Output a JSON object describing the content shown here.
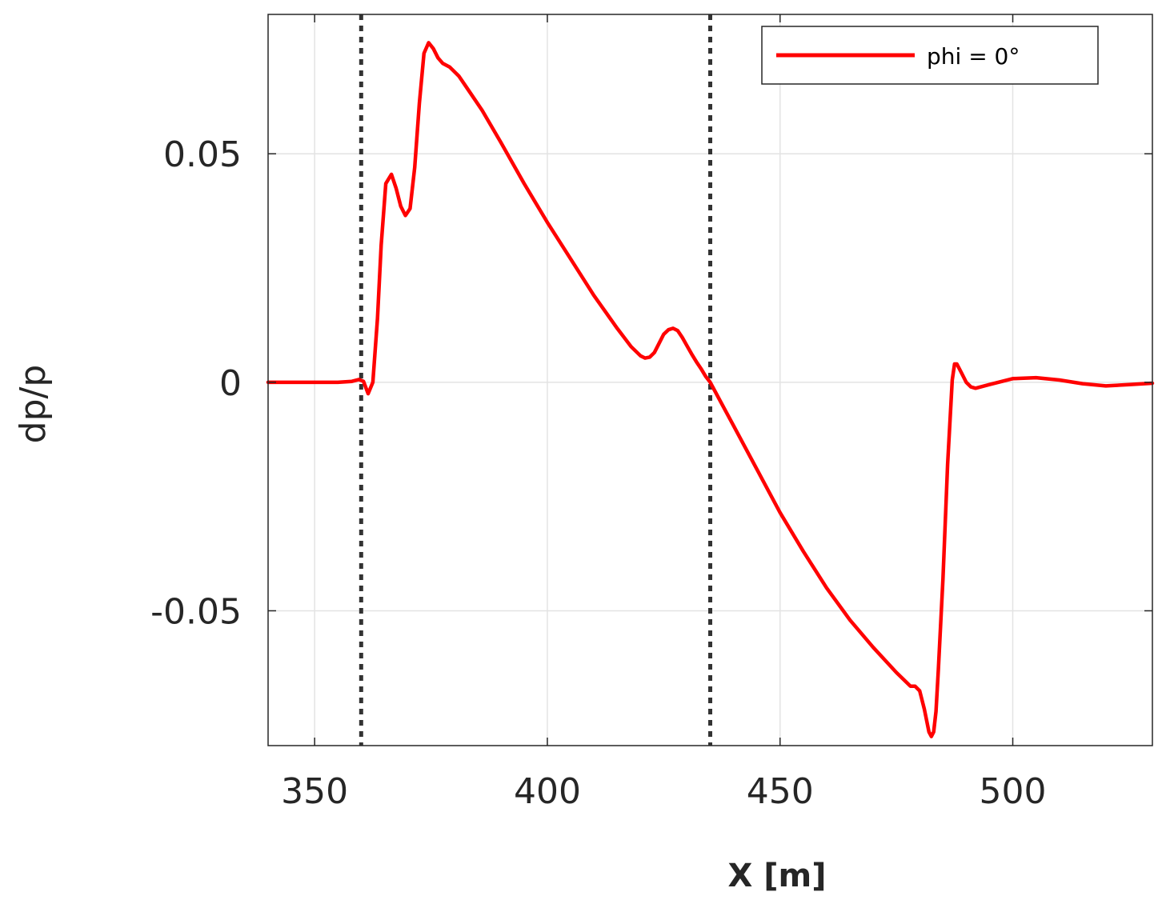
{
  "chart_data": {
    "type": "line",
    "title": "",
    "xlabel": "X [m]",
    "ylabel": "dp/p",
    "xlim": [
      340,
      530
    ],
    "ylim": [
      -0.0795,
      0.0805
    ],
    "xticks": [
      350,
      400,
      450,
      500
    ],
    "xtick_labels": [
      "350",
      "400",
      "450",
      "500"
    ],
    "yticks": [
      -0.05,
      0,
      0.05
    ],
    "ytick_labels": [
      "-0.05",
      "0",
      "0.05"
    ],
    "grid": true,
    "legend_position": "top-right",
    "vertical_lines": [
      360,
      435
    ],
    "series": [
      {
        "name": "phi = 0°",
        "color": "#ff0000",
        "x": [
          340,
          350,
          355,
          358,
          359.5,
          360.5,
          361.5,
          362.5,
          363.5,
          364.3,
          365.3,
          366.5,
          367.5,
          368.5,
          369.5,
          370.5,
          371.5,
          372.5,
          373.5,
          374.5,
          375.5,
          376.5,
          377.5,
          379,
          381,
          383,
          386,
          390,
          395,
          400,
          405,
          410,
          415,
          418,
          420,
          421,
          422,
          423,
          424,
          425,
          426,
          427,
          428,
          429,
          430,
          431,
          432,
          433,
          434,
          435,
          437,
          440,
          445,
          450,
          455,
          460,
          465,
          470,
          475,
          477,
          478,
          479,
          480,
          481,
          482,
          482.5,
          483,
          483.5,
          484,
          485,
          486,
          487,
          487.5,
          488,
          489,
          490,
          491,
          492,
          495,
          500,
          505,
          510,
          515,
          520,
          525,
          530
        ],
        "y": [
          0,
          0,
          0,
          0.0002,
          0.0006,
          0.0002,
          -0.0025,
          0,
          0.014,
          0.03,
          0.0435,
          0.0455,
          0.0425,
          0.0385,
          0.0365,
          0.038,
          0.047,
          0.061,
          0.072,
          0.0743,
          0.073,
          0.071,
          0.0698,
          0.069,
          0.067,
          0.064,
          0.0595,
          0.0525,
          0.0435,
          0.035,
          0.027,
          0.019,
          0.0118,
          0.0078,
          0.0058,
          0.0053,
          0.0055,
          0.0065,
          0.0085,
          0.0105,
          0.0115,
          0.0118,
          0.0113,
          0.0098,
          0.008,
          0.0062,
          0.0045,
          0.003,
          0.0013,
          0,
          -0.0038,
          -0.0095,
          -0.019,
          -0.0285,
          -0.037,
          -0.045,
          -0.052,
          -0.058,
          -0.0635,
          -0.0655,
          -0.0665,
          -0.0665,
          -0.0675,
          -0.0715,
          -0.0765,
          -0.0775,
          -0.0765,
          -0.072,
          -0.063,
          -0.043,
          -0.018,
          0.0005,
          0.004,
          0.004,
          0.002,
          0,
          -0.001,
          -0.0013,
          -0.0005,
          0.0008,
          0.001,
          0.0005,
          -0.0003,
          -0.0008,
          -0.0005,
          -0.0002
        ]
      }
    ]
  }
}
